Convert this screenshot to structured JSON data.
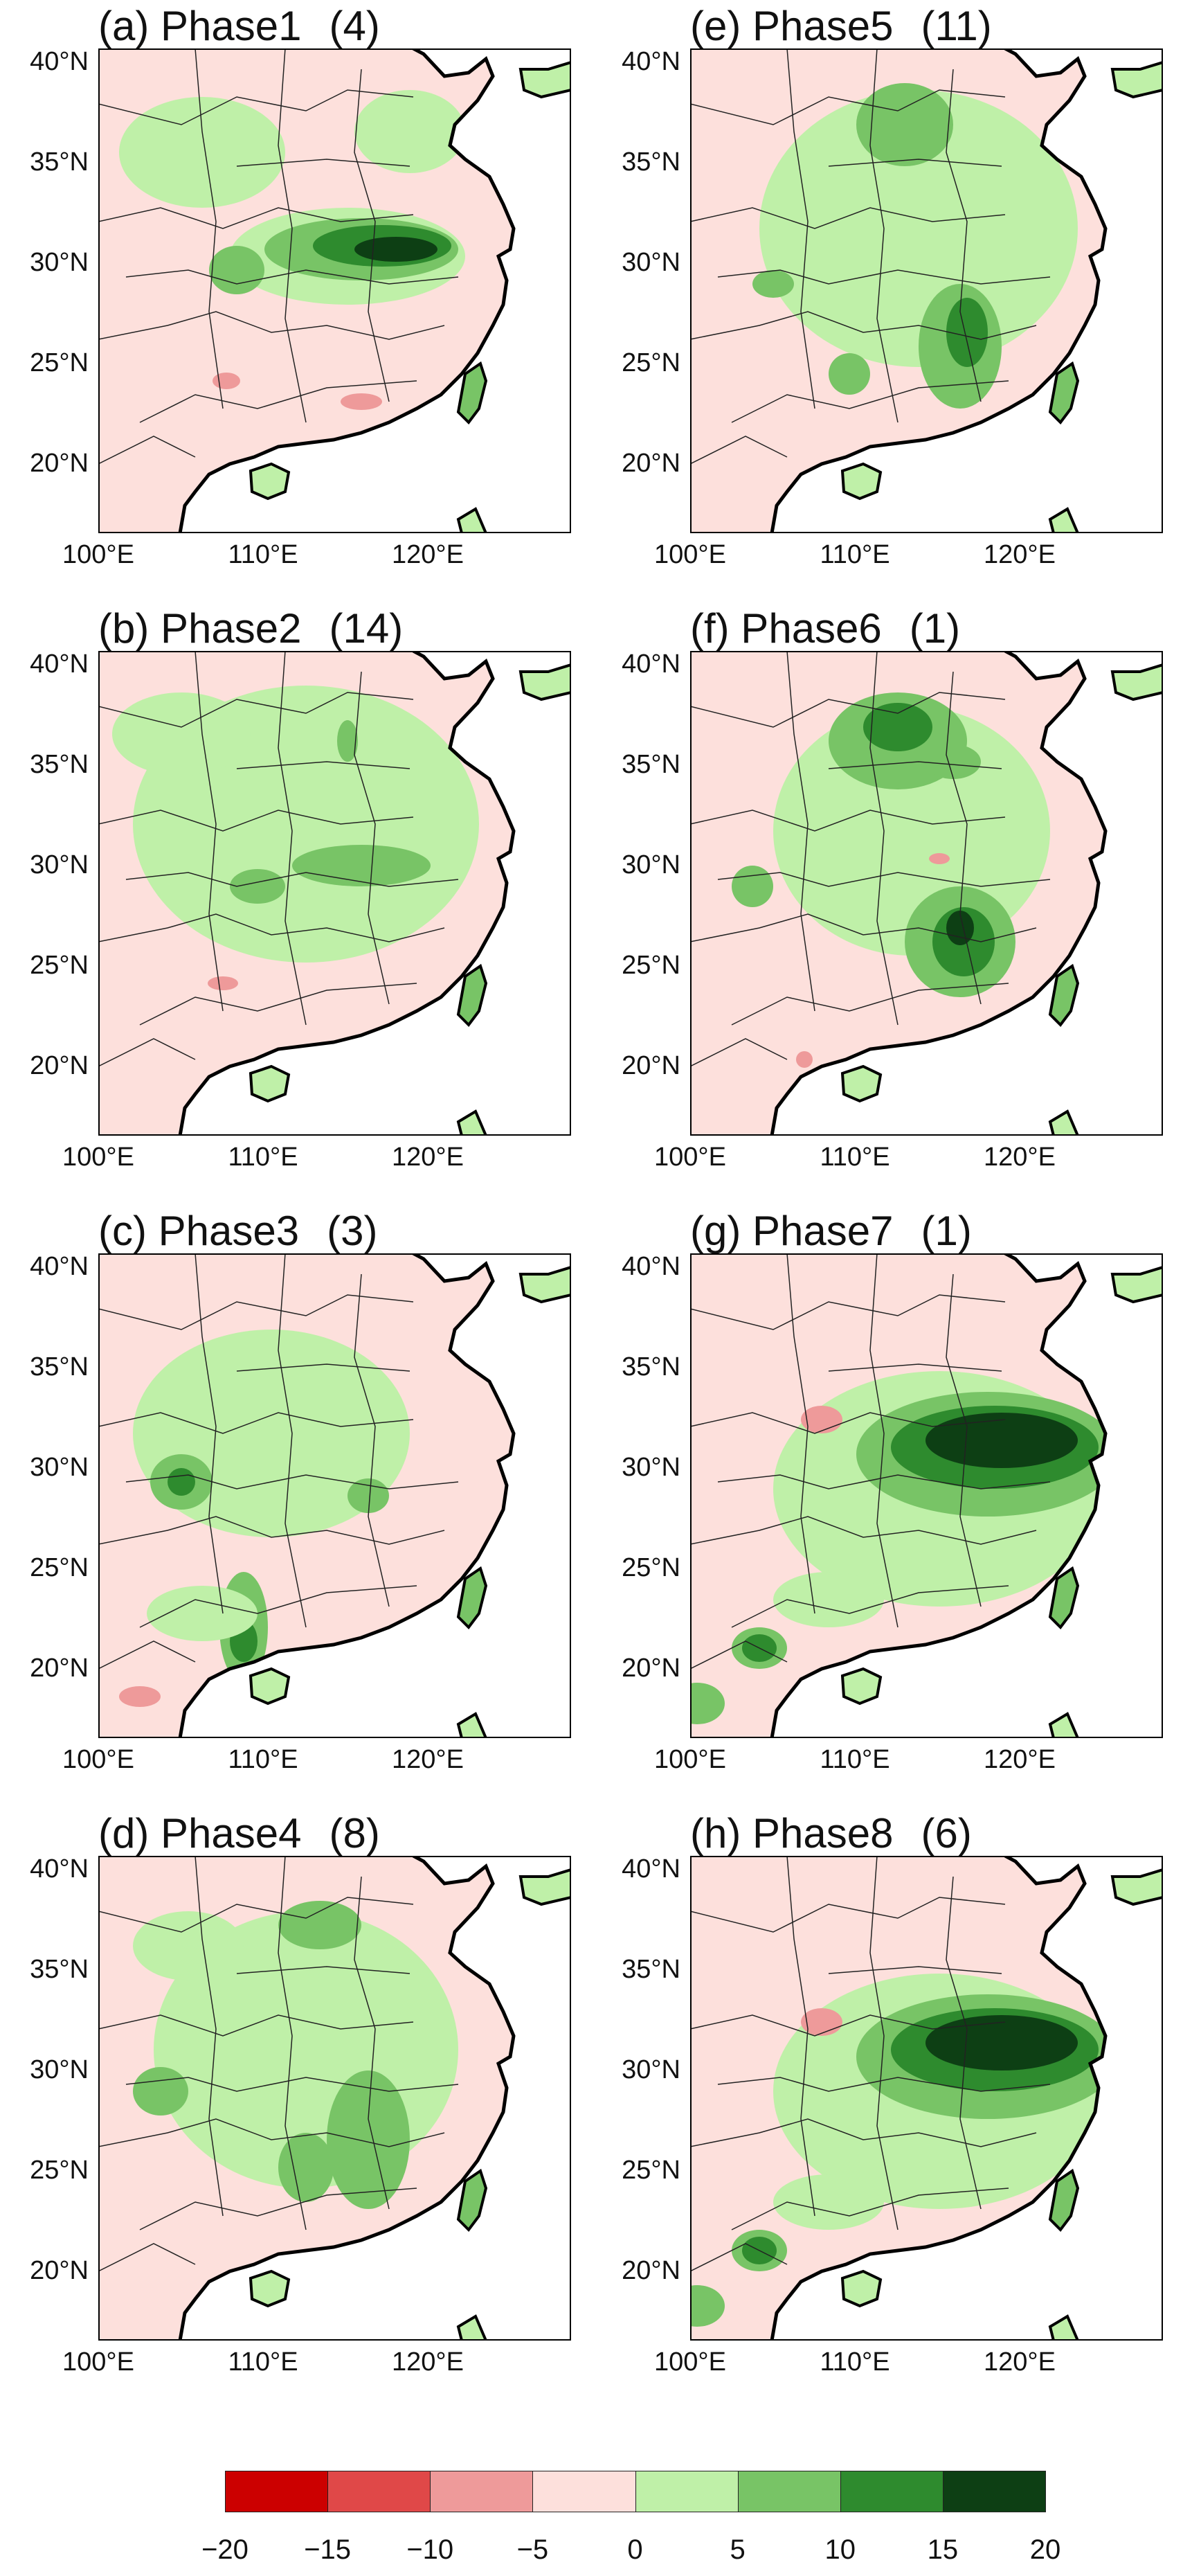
{
  "figure": {
    "panels": [
      {
        "id": "a",
        "label": "(a) Phase1",
        "count": "(4)",
        "pattern": "yangtze-band"
      },
      {
        "id": "b",
        "label": "(b) Phase2",
        "count": "(14)",
        "pattern": "weak-central"
      },
      {
        "id": "c",
        "label": "(c) Phase3",
        "count": "(3)",
        "pattern": "southwest"
      },
      {
        "id": "d",
        "label": "(d) Phase4",
        "count": "(8)",
        "pattern": "south-central"
      },
      {
        "id": "e",
        "label": "(e) Phase5",
        "count": "(11)",
        "pattern": "southeast-north"
      },
      {
        "id": "f",
        "label": "(f) Phase6",
        "count": "(1)",
        "pattern": "north-southeast"
      },
      {
        "id": "g",
        "label": "(g) Phase7",
        "count": "(1)",
        "pattern": "strong-yangtze"
      },
      {
        "id": "h",
        "label": "(h) Phase8",
        "count": "(6)",
        "pattern": "strong-yangtze"
      }
    ],
    "lat_ticks": [
      "40°N",
      "35°N",
      "30°N",
      "25°N",
      "20°N"
    ],
    "lon_ticks": [
      "100°E",
      "110°E",
      "120°E"
    ],
    "colorbar": {
      "ticks": [
        "−20",
        "−15",
        "−10",
        "−5",
        "0",
        "5",
        "10",
        "15",
        "20"
      ],
      "colors": [
        "#cc0000",
        "#e04848",
        "#ee9a9a",
        "#fde0dc",
        "#bff0a8",
        "#78c466",
        "#2e8b2e",
        "#0d3f14"
      ]
    }
  }
}
